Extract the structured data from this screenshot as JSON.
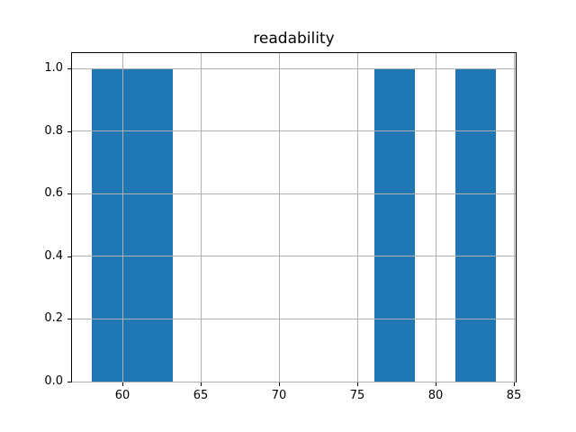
{
  "chart_data": {
    "type": "bar",
    "subtype": "histogram",
    "title": "readability",
    "bin_edges": [
      58.07,
      60.64,
      63.22,
      65.79,
      68.37,
      70.94,
      73.52,
      76.09,
      78.67,
      81.24,
      83.82
    ],
    "counts": [
      1,
      1,
      0,
      0,
      0,
      0,
      0,
      1,
      0,
      1
    ],
    "x_ticks": [
      60,
      65,
      70,
      75,
      80,
      85
    ],
    "x_tick_labels": [
      "60",
      "65",
      "70",
      "75",
      "80",
      "85"
    ],
    "y_ticks": [
      0.0,
      0.2,
      0.4,
      0.6,
      0.8,
      1.0
    ],
    "y_tick_labels": [
      "0.0",
      "0.2",
      "0.4",
      "0.6",
      "0.8",
      "1.0"
    ],
    "xlim": [
      56.78,
      85.11
    ],
    "ylim": [
      0,
      1.05
    ],
    "xlabel": "",
    "ylabel": "",
    "grid": true,
    "grid_above_bars": true,
    "legend": "none",
    "colors": {
      "bar": "#1f77b4",
      "grid": "#b0b0b0",
      "spine": "#000000",
      "background": "#ffffff",
      "text": "#000000"
    }
  }
}
